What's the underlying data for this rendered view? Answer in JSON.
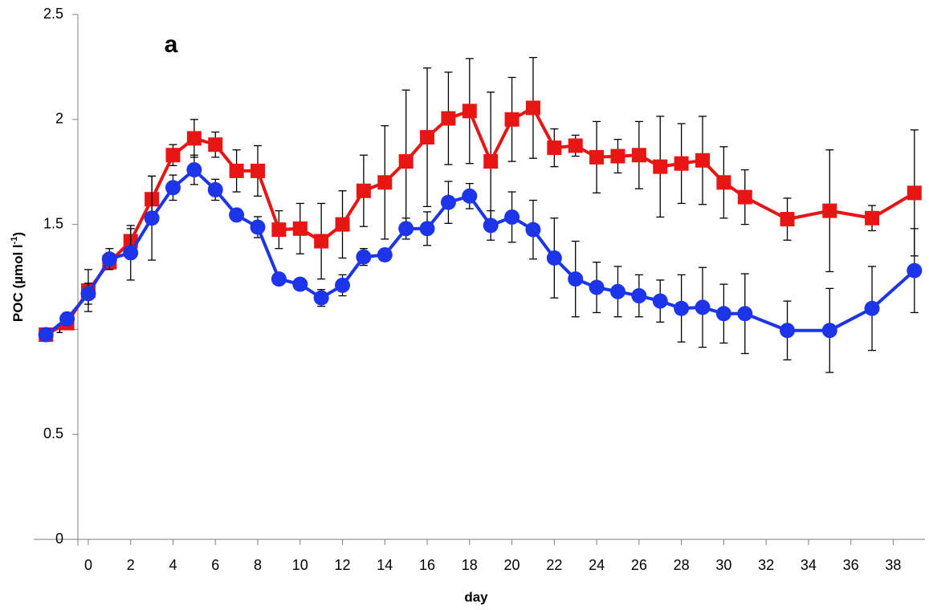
{
  "chart_data": {
    "type": "line",
    "annotation": "a",
    "xlabel": "day",
    "ylabel": [
      "POC (µmol l",
      "-1",
      ")"
    ],
    "xlim": [
      -2.5,
      39.5
    ],
    "xticks": [
      0,
      2,
      4,
      6,
      8,
      10,
      12,
      14,
      16,
      18,
      20,
      22,
      24,
      26,
      28,
      30,
      32,
      34,
      36,
      38
    ],
    "ylim": [
      0,
      2.5
    ],
    "yticks": [
      0,
      0.5,
      1,
      1.5,
      2,
      2.5
    ],
    "grid": false,
    "x": [
      -2,
      -1,
      0,
      1,
      2,
      3,
      4,
      5,
      6,
      7,
      8,
      9,
      10,
      11,
      12,
      13,
      14,
      15,
      16,
      17,
      18,
      19,
      20,
      21,
      22,
      23,
      24,
      25,
      26,
      27,
      28,
      29,
      30,
      31,
      33,
      35,
      37,
      39
    ],
    "series": [
      {
        "color": "#e81515",
        "marker": "square",
        "values": [
          0.975,
          1.03,
          1.185,
          1.32,
          1.42,
          1.62,
          1.83,
          1.91,
          1.88,
          1.755,
          1.755,
          1.475,
          1.48,
          1.42,
          1.5,
          1.66,
          1.7,
          1.8,
          1.915,
          2.005,
          2.04,
          1.8,
          2.0,
          2.055,
          1.865,
          1.875,
          1.82,
          1.825,
          1.83,
          1.775,
          1.79,
          1.805,
          1.7,
          1.63,
          1.525,
          1.565,
          1.53,
          1.65
        ],
        "errors": [
          0.02,
          0.02,
          0.1,
          0.03,
          0.06,
          0.11,
          0.05,
          0.09,
          0.06,
          0.1,
          0.12,
          0.09,
          0.12,
          0.18,
          0.16,
          0.17,
          0.27,
          0.34,
          0.33,
          0.22,
          0.25,
          0.33,
          0.2,
          0.24,
          0.09,
          0.05,
          0.17,
          0.08,
          0.16,
          0.24,
          0.19,
          0.21,
          0.17,
          0.13,
          0.1,
          0.29,
          0.06,
          0.3
        ]
      },
      {
        "color": "#1c35e8",
        "marker": "circle",
        "values": [
          0.975,
          1.05,
          1.17,
          1.335,
          1.365,
          1.53,
          1.675,
          1.76,
          1.665,
          1.545,
          1.487,
          1.24,
          1.215,
          1.15,
          1.21,
          1.345,
          1.355,
          1.48,
          1.48,
          1.605,
          1.635,
          1.495,
          1.535,
          1.475,
          1.34,
          1.24,
          1.2,
          1.18,
          1.16,
          1.135,
          1.1,
          1.105,
          1.075,
          1.075,
          0.995,
          0.995,
          1.1,
          1.28
        ],
        "errors": [
          0.01,
          0.03,
          0.05,
          0.05,
          0.13,
          0.2,
          0.06,
          0.07,
          0.05,
          0.03,
          0.05,
          0.02,
          0.02,
          0.04,
          0.05,
          0.04,
          0.03,
          0.05,
          0.08,
          0.1,
          0.06,
          0.07,
          0.12,
          0.14,
          0.19,
          0.18,
          0.12,
          0.12,
          0.1,
          0.1,
          0.16,
          0.19,
          0.14,
          0.19,
          0.14,
          0.2,
          0.2,
          0.2
        ]
      }
    ]
  }
}
